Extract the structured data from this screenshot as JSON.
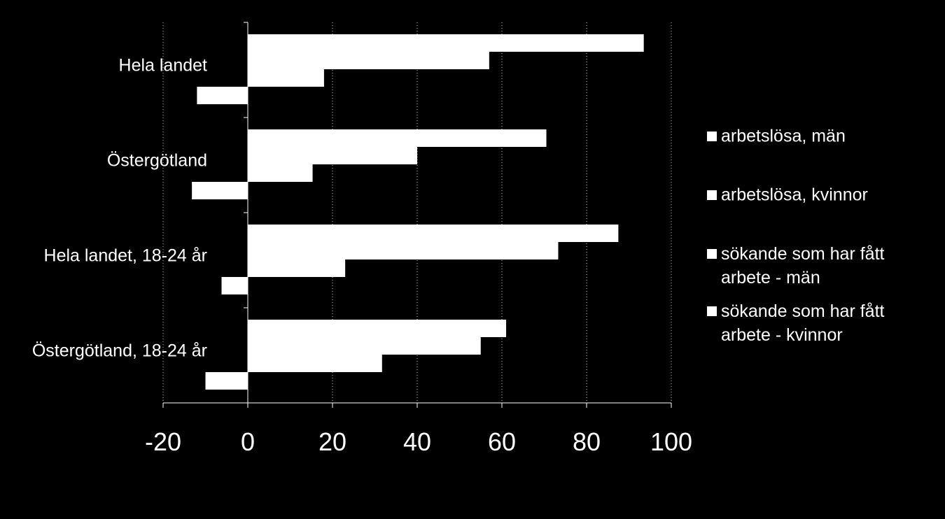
{
  "chart_data": {
    "type": "bar",
    "orientation": "horizontal",
    "categories": [
      "Hela landet",
      "Östergötland",
      "Hela landet, 18-24 år",
      "Östergötland, 18-24 år"
    ],
    "series": [
      {
        "name": "arbetslösa, män",
        "values": [
          93.5,
          70.5,
          87.5,
          61
        ]
      },
      {
        "name": "arbetslösa, kvinnor",
        "values": [
          57,
          40,
          73.3,
          55
        ]
      },
      {
        "name": "sökande som har fått arbete - män",
        "values": [
          18,
          15.3,
          23,
          31.7
        ]
      },
      {
        "name": "sökande som har fått arbete - kvinnor",
        "values": [
          -12,
          -13.2,
          -6.2,
          -10
        ]
      }
    ],
    "xlim": [
      -20,
      100
    ],
    "x_ticks": [
      "-20",
      "0",
      "20",
      "40",
      "60",
      "80",
      "100"
    ],
    "gridlines": true,
    "legend_position": "right",
    "colors": {
      "background": "#000000",
      "bars": "#ffffff",
      "text": "#ffffff",
      "grid": "#ffffff"
    }
  }
}
